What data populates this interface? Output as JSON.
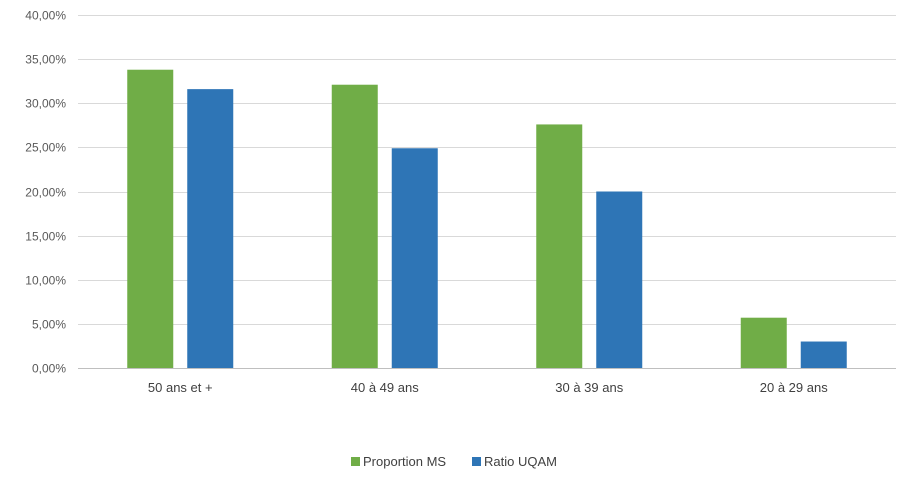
{
  "chart_data": {
    "type": "bar",
    "title": "",
    "xlabel": "",
    "ylabel": "",
    "categories": [
      "50 ans et +",
      "40 à 49 ans",
      "30 à 39 ans",
      "20 à 29 ans"
    ],
    "series": [
      {
        "name": "Proportion MS",
        "color": "#70ad47",
        "values": [
          33.8,
          32.1,
          27.6,
          5.7
        ]
      },
      {
        "name": "Ratio  UQAM",
        "color": "#2e75b6",
        "values": [
          31.6,
          24.9,
          20.0,
          3.0
        ]
      }
    ],
    "ylim": [
      0,
      40
    ],
    "yticks": [
      "0,00%",
      "5,00%",
      "10,00%",
      "15,00%",
      "20,00%",
      "25,00%",
      "30,00%",
      "35,00%",
      "40,00%"
    ],
    "grid": true,
    "legend_position": "bottom"
  }
}
